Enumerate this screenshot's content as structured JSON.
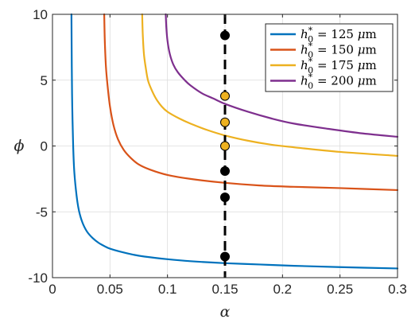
{
  "chart_data": {
    "type": "line",
    "title": "",
    "xlabel": "α",
    "ylabel": "ϕ",
    "xlim": [
      0,
      0.3
    ],
    "ylim": [
      -10,
      10
    ],
    "xticks": [
      0,
      0.05,
      0.1,
      0.15,
      0.2,
      0.25,
      0.3
    ],
    "xtick_labels": [
      "0",
      "0.05",
      "0.1",
      "0.15",
      "0.2",
      "0.25",
      "0.3"
    ],
    "yticks": [
      -10,
      -5,
      0,
      5,
      10
    ],
    "ytick_labels": [
      "-10",
      "-5",
      "0",
      "5",
      "10"
    ],
    "grid": true,
    "legend_position": "top-right",
    "series": [
      {
        "name": "h0* = 125 μm",
        "label_parts": {
          "var": "h",
          "sub": "0",
          "sup": "*",
          "rest": " = 125 ",
          "unit_it": "μ",
          "unit": "m"
        },
        "color": "#0072BD",
        "x": [
          0.0165,
          0.0168,
          0.0172,
          0.018,
          0.019,
          0.021,
          0.023,
          0.026,
          0.03,
          0.035,
          0.04,
          0.045,
          0.05,
          0.06,
          0.07,
          0.08,
          0.1,
          0.12,
          0.15,
          0.18,
          0.21,
          0.25,
          0.3
        ],
        "y": [
          10,
          6,
          3,
          0,
          -2,
          -3.8,
          -4.9,
          -5.8,
          -6.5,
          -7.0,
          -7.35,
          -7.6,
          -7.8,
          -8.05,
          -8.25,
          -8.4,
          -8.6,
          -8.75,
          -8.9,
          -9.0,
          -9.1,
          -9.2,
          -9.3
        ]
      },
      {
        "name": "h0* = 150 μm",
        "label_parts": {
          "var": "h",
          "sub": "0",
          "sup": "*",
          "rest": " = 150 ",
          "unit_it": "μ",
          "unit": "m"
        },
        "color": "#D95319",
        "x": [
          0.045,
          0.0455,
          0.0465,
          0.048,
          0.05,
          0.053,
          0.057,
          0.062,
          0.068,
          0.075,
          0.085,
          0.1,
          0.12,
          0.15,
          0.18,
          0.21,
          0.25,
          0.3
        ],
        "y": [
          10,
          8,
          6,
          4.5,
          3,
          1.6,
          0.5,
          -0.3,
          -0.9,
          -1.4,
          -1.8,
          -2.2,
          -2.5,
          -2.8,
          -3.0,
          -3.1,
          -3.2,
          -3.35
        ]
      },
      {
        "name": "h0* = 175 μm",
        "label_parts": {
          "var": "h",
          "sub": "0",
          "sup": "*",
          "rest": " = 175 ",
          "unit_it": "μ",
          "unit": "m"
        },
        "color": "#EDB120",
        "x": [
          0.078,
          0.0785,
          0.0795,
          0.081,
          0.083,
          0.086,
          0.09,
          0.095,
          0.1,
          0.11,
          0.12,
          0.135,
          0.15,
          0.17,
          0.19,
          0.21,
          0.25,
          0.3
        ],
        "y": [
          10,
          8.5,
          7,
          6,
          5,
          4.3,
          3.6,
          3.0,
          2.6,
          2.1,
          1.7,
          1.2,
          0.8,
          0.4,
          0.1,
          -0.1,
          -0.45,
          -0.75
        ]
      },
      {
        "name": "h0* = 200 μm",
        "label_parts": {
          "var": "h",
          "sub": "0",
          "sup": "*",
          "rest": " = 200 ",
          "unit_it": "μ",
          "unit": "m"
        },
        "color": "#7E2F8E",
        "x": [
          0.0985,
          0.099,
          0.1,
          0.102,
          0.105,
          0.109,
          0.115,
          0.12,
          0.13,
          0.14,
          0.15,
          0.17,
          0.19,
          0.21,
          0.24,
          0.27,
          0.3
        ],
        "y": [
          10,
          9,
          8,
          7,
          6.2,
          5.6,
          5.0,
          4.6,
          4.0,
          3.6,
          3.2,
          2.6,
          2.1,
          1.7,
          1.3,
          0.95,
          0.7
        ]
      }
    ],
    "vertical_line": {
      "x": 0.15,
      "color": "#000000",
      "style": "dashed"
    },
    "markers": [
      {
        "x": 0.15,
        "y": 8.4,
        "color": "#000000"
      },
      {
        "x": 0.15,
        "y": 3.8,
        "color": "#EDB120"
      },
      {
        "x": 0.15,
        "y": 1.8,
        "color": "#EDB120"
      },
      {
        "x": 0.15,
        "y": 0.0,
        "color": "#EDB120"
      },
      {
        "x": 0.15,
        "y": -1.9,
        "color": "#000000"
      },
      {
        "x": 0.15,
        "y": -3.9,
        "color": "#000000"
      },
      {
        "x": 0.15,
        "y": -8.4,
        "color": "#000000"
      }
    ]
  }
}
